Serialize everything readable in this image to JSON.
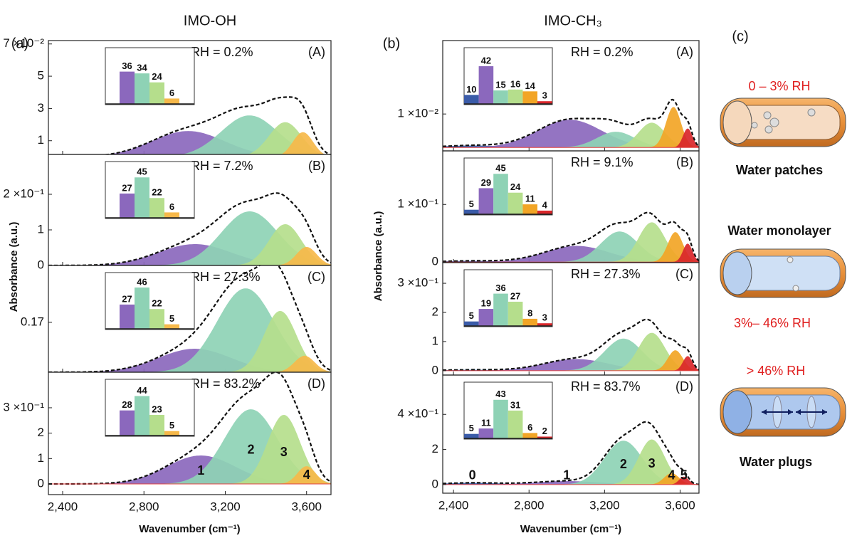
{
  "chart_data": [
    {
      "type": "spectra",
      "label": "(a)",
      "title": "IMO-OH",
      "xlabel": "Wavenumber (cm⁻¹)",
      "ylabel": "Absorbance (a.u.)",
      "xlim": [
        2330,
        3720
      ],
      "xticks": [
        {
          "value": 2400,
          "label": "2,400"
        },
        {
          "value": 2800,
          "label": "2,800"
        },
        {
          "value": 3200,
          "label": "3,200"
        },
        {
          "value": 3600,
          "label": "3,600"
        }
      ],
      "colors": [
        "#8b68bd",
        "#8ed2b5",
        "#b5de8c",
        "#f6b84a"
      ],
      "subplots": [
        {
          "id": "(A)",
          "rh": "RH = 0.2%",
          "ylim": [
            0.0015,
            0.0721
          ],
          "yticks": [
            {
              "value": 0.01,
              "label": "1"
            },
            {
              "value": 0.03,
              "label": "3"
            },
            {
              "value": 0.05,
              "label": "5"
            },
            {
              "value": 0.07,
              "label": "7 ×10⁻²"
            }
          ],
          "peaks": [
            {
              "center": 3017,
              "height": 0.016,
              "width": 180
            },
            {
              "center": 3319,
              "height": 0.0257,
              "width": 140
            },
            {
              "center": 3495,
              "height": 0.0215,
              "width": 80
            },
            {
              "center": 3582,
              "height": 0.0153,
              "width": 50
            }
          ],
          "inset": [
            36,
            34,
            24,
            6
          ]
        },
        {
          "id": "(B)",
          "rh": "RH = 7.2%",
          "ylim": [
            0,
            0.312
          ],
          "yticks": [
            0,
            {
              "value": 0.1,
              "label": "1"
            },
            {
              "value": 0.2,
              "label": "2 ×10⁻¹"
            }
          ],
          "peaks": [
            {
              "center": 3050,
              "height": 0.06,
              "width": 180
            },
            {
              "center": 3320,
              "height": 0.152,
              "width": 140
            },
            {
              "center": 3495,
              "height": 0.116,
              "width": 80
            },
            {
              "center": 3600,
              "height": 0.052,
              "width": 50
            }
          ],
          "inset": [
            27,
            45,
            22,
            6
          ]
        },
        {
          "id": "(C)",
          "rh": "RH = 27.3%",
          "ylim": [
            0,
            0.364
          ],
          "yticks": [
            0.17
          ],
          "peaks": [
            {
              "center": 3050,
              "height": 0.08,
              "width": 180
            },
            {
              "center": 3300,
              "height": 0.286,
              "width": 140
            },
            {
              "center": 3470,
              "height": 0.209,
              "width": 80
            },
            {
              "center": 3590,
              "height": 0.056,
              "width": 50
            }
          ],
          "inset": [
            27,
            46,
            22,
            5
          ]
        },
        {
          "id": "(D)",
          "rh": "RH = 83.2%",
          "ylim": [
            -0.042,
            0.44
          ],
          "yticks": [
            0,
            {
              "value": 0.1,
              "label": "1"
            },
            {
              "value": 0.2,
              "label": "2"
            },
            {
              "value": 0.3,
              "label": "3 ×10⁻¹"
            }
          ],
          "peaks": [
            {
              "center": 3080,
              "height": 0.112,
              "width": 170
            },
            {
              "center": 3326,
              "height": 0.294,
              "width": 130
            },
            {
              "center": 3488,
              "height": 0.272,
              "width": 80
            },
            {
              "center": 3600,
              "height": 0.07,
              "width": 45
            }
          ],
          "inset": [
            28,
            44,
            23,
            5
          ],
          "peak_labels": [
            "1",
            "2",
            "3",
            "4"
          ]
        }
      ]
    },
    {
      "type": "spectra",
      "label": "(b)",
      "title": "IMO-CH₃",
      "xlabel": "Wavenumber (cm⁻¹)",
      "ylabel": "Absorbance (a.u.)",
      "xlim": [
        2343,
        3700
      ],
      "xticks": [
        {
          "value": 2400,
          "label": "2,400"
        },
        {
          "value": 2800,
          "label": "2,800"
        },
        {
          "value": 3200,
          "label": "3,200"
        },
        {
          "value": 3600,
          "label": "3,600"
        }
      ],
      "colors": [
        "#3a5ba8",
        "#8b68bd",
        "#8ed2b5",
        "#b5de8c",
        "#f2a526",
        "#d9262a"
      ],
      "subplots": [
        {
          "id": "(A)",
          "rh": "RH = 0.2%",
          "ylim": [
            -0.001,
            0.0319
          ],
          "yticks": [
            {
              "value": 0.01,
              "label": "1 ×10⁻²"
            }
          ],
          "peaks": [
            {
              "center": 2500,
              "height": 0.0006,
              "width": 150
            },
            {
              "center": 3015,
              "height": 0.0083,
              "width": 170
            },
            {
              "center": 3260,
              "height": 0.0047,
              "width": 100
            },
            {
              "center": 3450,
              "height": 0.0074,
              "width": 70
            },
            {
              "center": 3565,
              "height": 0.0121,
              "width": 40
            },
            {
              "center": 3640,
              "height": 0.0057,
              "width": 25
            }
          ],
          "inset": [
            10,
            42,
            15,
            16,
            14,
            3
          ]
        },
        {
          "id": "(B)",
          "rh": "RH = 9.1%",
          "ylim": [
            -0.001,
            0.193
          ],
          "yticks": [
            0,
            {
              "value": 0.1,
              "label": "1 ×10⁻¹"
            }
          ],
          "peaks": [
            {
              "center": 2500,
              "height": 0.002,
              "width": 150
            },
            {
              "center": 3053,
              "height": 0.028,
              "width": 170
            },
            {
              "center": 3280,
              "height": 0.053,
              "width": 100
            },
            {
              "center": 3450,
              "height": 0.069,
              "width": 70
            },
            {
              "center": 3575,
              "height": 0.052,
              "width": 40
            },
            {
              "center": 3640,
              "height": 0.032,
              "width": 25
            }
          ],
          "inset": [
            5,
            29,
            45,
            24,
            11,
            4
          ]
        },
        {
          "id": "(C)",
          "rh": "RH = 27.3%",
          "ylim": [
            -0.015,
            0.371
          ],
          "yticks": [
            0,
            {
              "value": 0.1,
              "label": "1"
            },
            {
              "value": 0.2,
              "label": "2"
            },
            {
              "value": 0.3,
              "label": "3 ×10⁻¹"
            }
          ],
          "peaks": [
            {
              "center": 2500,
              "height": 0.003,
              "width": 150
            },
            {
              "center": 3050,
              "height": 0.04,
              "width": 170
            },
            {
              "center": 3300,
              "height": 0.11,
              "width": 100
            },
            {
              "center": 3450,
              "height": 0.13,
              "width": 70
            },
            {
              "center": 3575,
              "height": 0.07,
              "width": 40
            },
            {
              "center": 3640,
              "height": 0.05,
              "width": 25
            }
          ],
          "inset": [
            5,
            19,
            36,
            27,
            8,
            3
          ]
        },
        {
          "id": "(D)",
          "rh": "RH = 83.7%",
          "ylim": [
            -0.049,
            0.624
          ],
          "yticks": [
            0,
            {
              "value": 0.2,
              "label": "2"
            },
            {
              "value": 0.4,
              "label": "4 ×10⁻¹"
            }
          ],
          "peaks": [
            {
              "center": 2500,
              "height": 0.01,
              "width": 150
            },
            {
              "center": 3000,
              "height": 0.02,
              "width": 170
            },
            {
              "center": 3300,
              "height": 0.25,
              "width": 100
            },
            {
              "center": 3450,
              "height": 0.257,
              "width": 70
            },
            {
              "center": 3555,
              "height": 0.065,
              "width": 40
            },
            {
              "center": 3620,
              "height": 0.045,
              "width": 25
            }
          ],
          "inset": [
            5,
            11,
            43,
            31,
            6,
            2
          ],
          "peak_labels": [
            "0",
            "1",
            "2",
            "3",
            "4",
            "5"
          ]
        }
      ]
    }
  ],
  "schematic": {
    "label": "(c)",
    "states": [
      {
        "range": "0 – 3% RH",
        "name": "Water patches"
      },
      {
        "range": "3%– 46% RH",
        "name": "Water monolayer"
      },
      {
        "range": "> 46% RH",
        "name": "Water plugs"
      }
    ]
  }
}
